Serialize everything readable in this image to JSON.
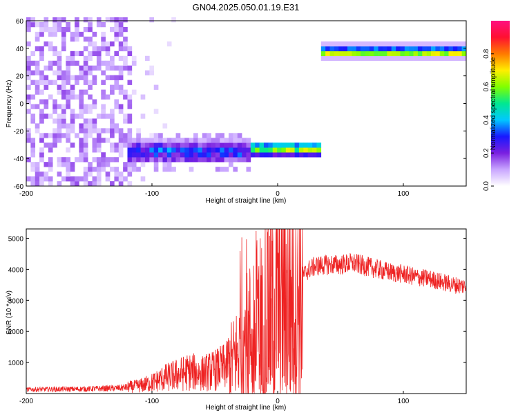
{
  "title": "GN04.2025.050.01.19.E31",
  "chart_data": [
    {
      "type": "heatmap",
      "xlabel": "Height of straight line (km)",
      "ylabel": "Frequency (Hz)",
      "xlim": [
        -200,
        150
      ],
      "ylim": [
        -60,
        60
      ],
      "xticks": [
        -200,
        -100,
        0,
        100
      ],
      "yticks": [
        -60,
        -40,
        -20,
        0,
        20,
        40,
        60
      ],
      "colorbar": {
        "label": "Normalized spectral amplitude",
        "range": [
          0,
          1
        ],
        "ticks": [
          0.0,
          0.2,
          0.4,
          0.6,
          0.8
        ],
        "colors": [
          "#ffffff",
          "#c9a6ff",
          "#7a1fe0",
          "#1818ff",
          "#00c8ff",
          "#00e890",
          "#80ff00",
          "#ffee00",
          "#ff7a00",
          "#ff1030",
          "#ff1080"
        ]
      },
      "features": [
        {
          "name": "noise",
          "x_range": [
            -200,
            -115
          ],
          "y_range": [
            -60,
            60
          ],
          "level": 0.15
        },
        {
          "name": "sparse noise",
          "x_range": [
            -120,
            -95
          ],
          "y_range": [
            -60,
            60
          ],
          "level": 0.05
        },
        {
          "name": "band",
          "x_range": [
            -120,
            35
          ],
          "y_center": -35,
          "level": 0.35
        },
        {
          "name": "band",
          "x_range": [
            -15,
            35
          ],
          "y_center": -33,
          "level": 0.75
        },
        {
          "name": "band",
          "x_range": [
            33,
            150
          ],
          "y_center": 37,
          "level": 0.8
        }
      ]
    },
    {
      "type": "line",
      "xlabel": "Height of straight line (km)",
      "ylabel": "SNR (10 * v/v)",
      "xlim": [
        -200,
        150
      ],
      "ylim": [
        0,
        5300
      ],
      "xticks": [
        -200,
        -100,
        0,
        100
      ],
      "yticks": [
        1000,
        2000,
        3000,
        4000,
        5000
      ],
      "series": [
        {
          "color": "#ee2222",
          "x": [
            -200,
            -175,
            -150,
            -125,
            -110,
            -100,
            -90,
            -80,
            -70,
            -60,
            -50,
            -40,
            -35,
            -30,
            -25,
            -20,
            -15,
            -10,
            -5,
            0,
            5,
            10,
            15,
            20,
            25,
            30,
            40,
            50,
            60,
            70,
            80,
            90,
            100,
            110,
            120,
            130,
            140,
            150
          ],
          "y": [
            130,
            140,
            150,
            180,
            250,
            350,
            500,
            600,
            700,
            650,
            750,
            900,
            1100,
            1400,
            1700,
            2000,
            2300,
            2600,
            2800,
            2900,
            3000,
            3200,
            3500,
            3800,
            4000,
            4100,
            4150,
            4150,
            4200,
            4100,
            4000,
            3900,
            3850,
            3750,
            3700,
            3600,
            3500,
            3450
          ]
        }
      ]
    }
  ]
}
